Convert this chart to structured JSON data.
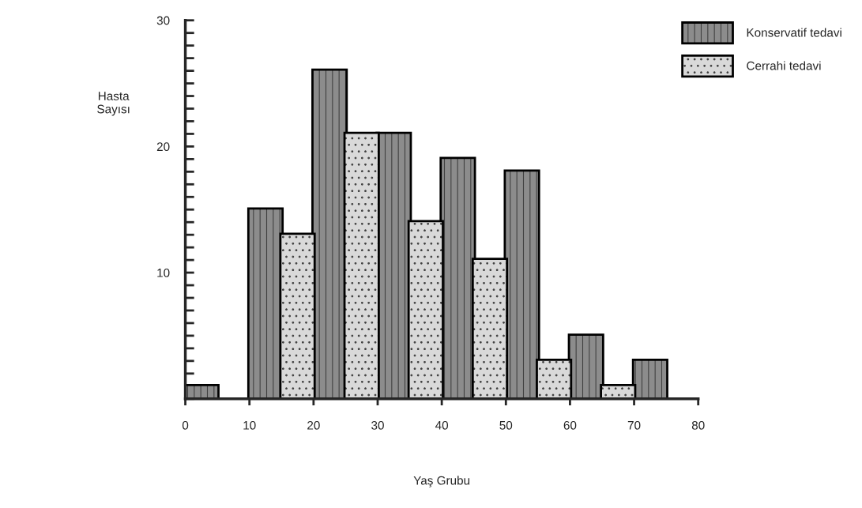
{
  "chart_data": {
    "type": "bar",
    "xlabel": "Yaş Grubu",
    "ylabel": "Hasta\nSayısı",
    "series": [
      {
        "name": "Konservatif tedavi",
        "color": "#8c8c8c",
        "x": [
          2.5,
          12.5,
          22.5,
          32.5,
          42.5,
          52.5,
          62.5,
          72.5
        ],
        "values": [
          1,
          15,
          26,
          21,
          19,
          18,
          5,
          3
        ]
      },
      {
        "name": "Cerrahi tedavi",
        "color": "#d9d9d9",
        "x": [
          17.5,
          27.5,
          37.5,
          47.5,
          57.5,
          67.5
        ],
        "values": [
          13,
          21,
          14,
          11,
          3,
          1
        ]
      }
    ],
    "xlim": [
      0,
      80
    ],
    "xticks": [
      0,
      10,
      20,
      30,
      40,
      50,
      60,
      70,
      80
    ],
    "ylim": [
      0,
      30
    ],
    "yticks": [
      {
        "value": 0,
        "label": null
      },
      {
        "value": 1,
        "label": null
      },
      {
        "value": 2,
        "label": null
      },
      {
        "value": 3,
        "label": null
      },
      {
        "value": 4,
        "label": null
      },
      {
        "value": 5,
        "label": null
      },
      {
        "value": 6,
        "label": null
      },
      {
        "value": 7,
        "label": null
      },
      {
        "value": 8,
        "label": null
      },
      {
        "value": 9,
        "label": null
      },
      10,
      {
        "value": 11,
        "label": null
      },
      {
        "value": 12,
        "label": null
      },
      {
        "value": 13,
        "label": null
      },
      {
        "value": 14,
        "label": null
      },
      {
        "value": 15,
        "label": null
      },
      {
        "value": 16,
        "label": null
      },
      {
        "value": 17,
        "label": null
      },
      {
        "value": 18,
        "label": null
      },
      {
        "value": 19,
        "label": null
      },
      20,
      {
        "value": 21,
        "label": null
      },
      {
        "value": 22,
        "label": null
      },
      {
        "value": 23,
        "label": null
      },
      {
        "value": 24,
        "label": null
      },
      {
        "value": 25,
        "label": null
      },
      {
        "value": 26,
        "label": null
      },
      {
        "value": 27,
        "label": null
      },
      {
        "value": 28,
        "label": null
      },
      {
        "value": 29,
        "label": null
      },
      30
    ],
    "legend": "top right",
    "grid": false
  }
}
